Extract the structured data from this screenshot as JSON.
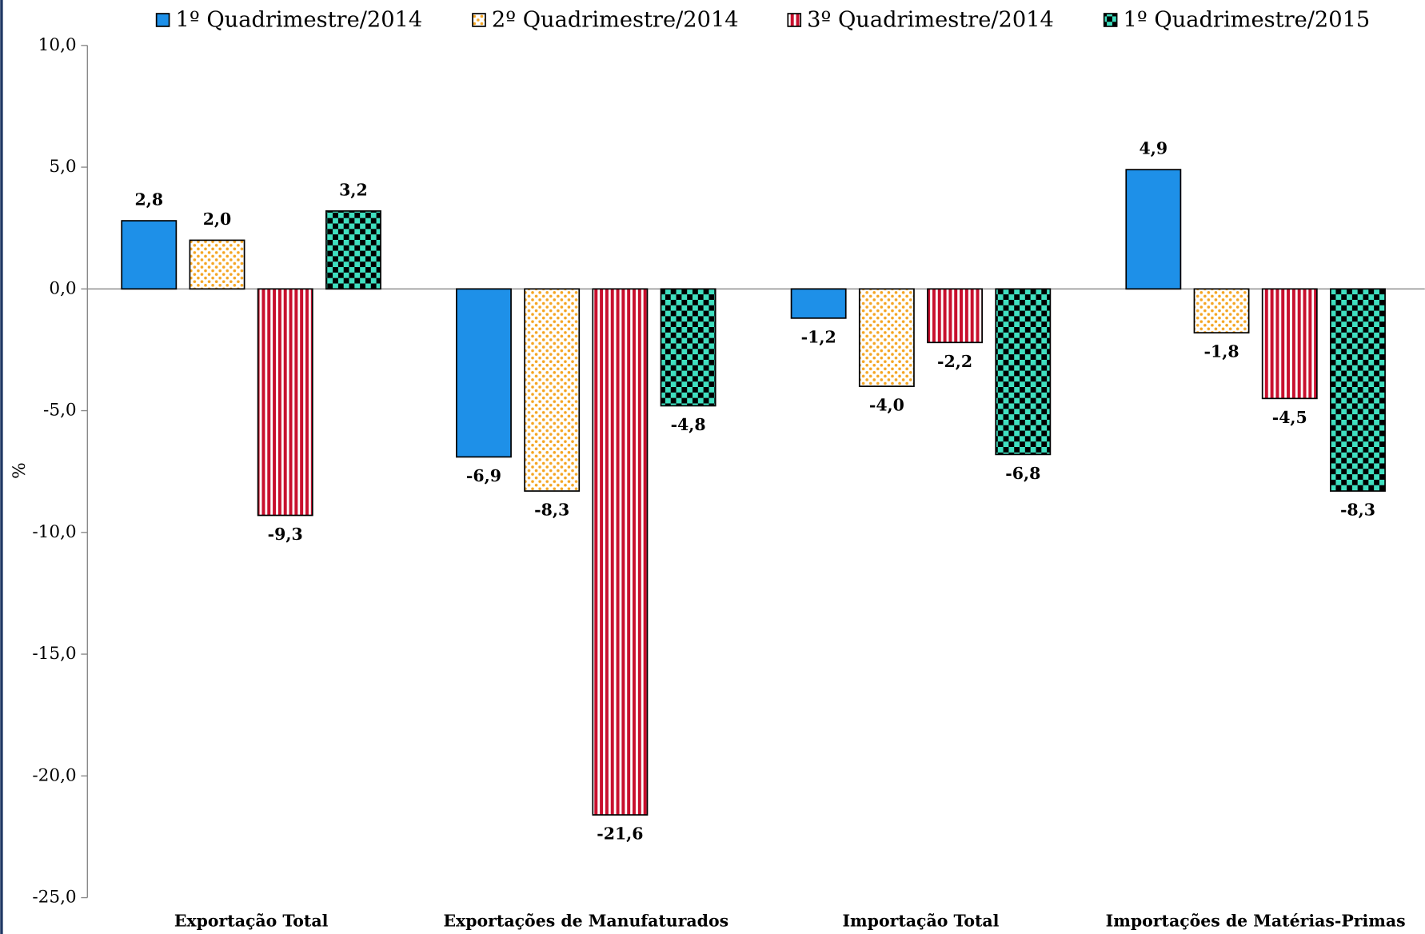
{
  "chart_data": {
    "type": "bar",
    "categories": [
      "Exportação Total",
      "Exportações de Manufaturados",
      "Importação Total",
      "Importações de Matérias-Primas"
    ],
    "y_label": "%",
    "ylim": [
      -25,
      10
    ],
    "yticks": [
      {
        "value": 10,
        "label": "10,0"
      },
      {
        "value": 5,
        "label": "5,0"
      },
      {
        "value": 0,
        "label": "0,0"
      },
      {
        "value": -5,
        "label": "-5,0"
      },
      {
        "value": -10,
        "label": "-10,0"
      },
      {
        "value": -15,
        "label": "-15,0"
      },
      {
        "value": -20,
        "label": "-20,0"
      },
      {
        "value": -25,
        "label": "-25,0"
      }
    ],
    "legend": "top",
    "series": [
      {
        "name": "1º Quadrimestre/2014",
        "color": "#1e90e8",
        "pattern": "solid",
        "values": [
          2.8,
          -6.9,
          -1.2,
          4.9
        ],
        "value_labels": [
          "2,8",
          "-6,9",
          "-1,2",
          "4,9"
        ]
      },
      {
        "name": "2º Quadrimestre/2014",
        "color": "#f5a623",
        "pattern": "dots",
        "values": [
          2.0,
          -8.3,
          -4.0,
          -1.8
        ],
        "value_labels": [
          "2,0",
          "-8,3",
          "-4,0",
          "-1,8"
        ]
      },
      {
        "name": "3º Quadrimestre/2014",
        "color": "#c8102e",
        "pattern": "stripes",
        "values": [
          -9.3,
          -21.6,
          -2.2,
          -4.5
        ],
        "value_labels": [
          "-9,3",
          "-21,6",
          "-2,2",
          "-4,5"
        ]
      },
      {
        "name": "1º Quadrimestre/2015",
        "color": "#40e0c0",
        "pattern": "checker",
        "values": [
          3.2,
          -4.8,
          -6.8,
          -8.3
        ],
        "value_labels": [
          "3,2",
          "-4,8",
          "-6,8",
          "-8,3"
        ]
      }
    ]
  }
}
